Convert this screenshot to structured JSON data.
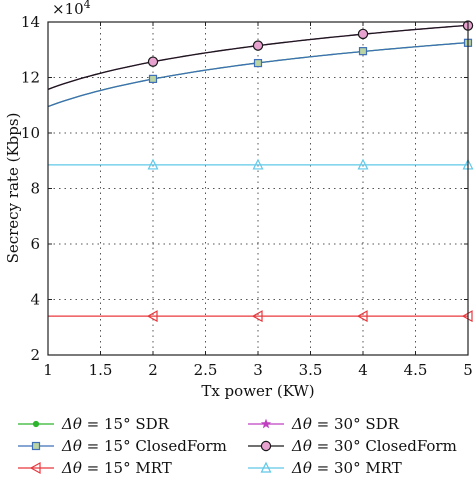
{
  "chart_data": {
    "type": "line",
    "xlabel": "Tx power (KW)",
    "ylabel": "Secrecy rate (Kbps)",
    "y_multiplier": "×10",
    "y_multiplier_exp": "4",
    "xlim": [
      1,
      5
    ],
    "ylim": [
      2,
      14
    ],
    "xticks": [
      "1",
      "1.5",
      "2",
      "2.5",
      "3",
      "3.5",
      "4",
      "4.5",
      "5"
    ],
    "yticks": [
      "2",
      "4",
      "6",
      "8",
      "10",
      "12",
      "14"
    ],
    "grid": true,
    "legend_position": "bottom",
    "series": [
      {
        "name": "Δθ = 15° SDR",
        "prefix": "Δθ",
        "suffix": " = 15° SDR",
        "color": "#2db52d",
        "marker": "dot",
        "x": [
          1,
          2,
          3,
          4,
          5
        ],
        "y": [
          10.95,
          11.95,
          12.52,
          12.95,
          13.25
        ]
      },
      {
        "name": "Δθ = 15° ClosedForm",
        "prefix": "Δθ",
        "suffix": " = 15° ClosedForm",
        "color": "#3f6fb6",
        "marker": "square",
        "x": [
          1,
          2,
          3,
          4,
          5
        ],
        "y": [
          10.95,
          11.95,
          12.52,
          12.95,
          13.25
        ]
      },
      {
        "name": "Δθ = 15° MRT",
        "prefix": "Δθ",
        "suffix": " = 15° MRT",
        "color": "#e8383d",
        "marker": "triangle-left",
        "x": [
          1,
          2,
          3,
          4,
          5
        ],
        "y": [
          3.4,
          3.4,
          3.4,
          3.4,
          3.4
        ]
      },
      {
        "name": "Δθ = 30° SDR",
        "prefix": "Δθ",
        "suffix": " = 30° SDR",
        "color": "#c040c0",
        "marker": "star",
        "x": [
          1,
          2,
          3,
          4,
          5
        ],
        "y": [
          11.57,
          12.57,
          13.15,
          13.57,
          13.87
        ]
      },
      {
        "name": "Δθ = 30° ClosedForm",
        "prefix": "Δθ",
        "suffix": " = 30° ClosedForm",
        "color": "#1a1a1a",
        "marker": "circle",
        "x": [
          1,
          2,
          3,
          4,
          5
        ],
        "y": [
          11.57,
          12.57,
          13.15,
          13.57,
          13.87
        ]
      },
      {
        "name": "Δθ = 30° MRT",
        "prefix": "Δθ",
        "suffix": " = 30° MRT",
        "color": "#5fc8e8",
        "marker": "triangle-up",
        "x": [
          1,
          2,
          3,
          4,
          5
        ],
        "y": [
          8.85,
          8.85,
          8.85,
          8.85,
          8.85
        ]
      }
    ]
  }
}
